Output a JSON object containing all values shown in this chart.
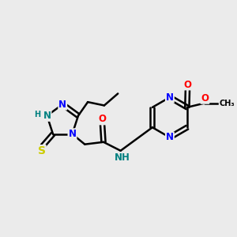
{
  "bg_color": "#ebebeb",
  "bond_color": "#000000",
  "bond_width": 1.8,
  "atom_colors": {
    "C": "#000000",
    "N": "#0000ff",
    "O": "#ff0000",
    "S": "#cccc00",
    "NH": "#008080"
  },
  "font_size": 8.5,
  "scale": 1.0
}
